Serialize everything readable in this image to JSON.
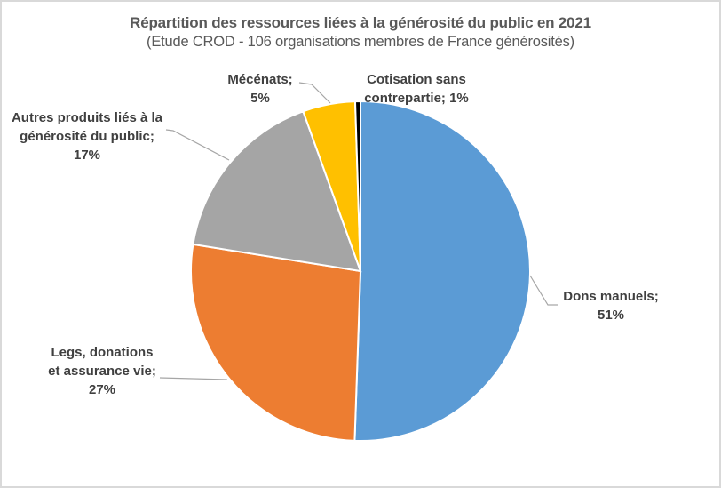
{
  "chart_data": {
    "type": "pie",
    "title": "Répartition des ressources liées à la générosité du public en 2021",
    "subtitle": "(Etude CROD - 106 organisations membres de France générosités)",
    "categories": [
      "Dons manuels",
      "Legs, donations et assurance vie",
      "Autres produits liés à la générosité du public",
      "Mécénats",
      "Cotisation sans contrepartie"
    ],
    "values": [
      51,
      27,
      17,
      5,
      1
    ],
    "units": "%",
    "colors": [
      "#5b9bd5",
      "#ed7d31",
      "#a5a5a5",
      "#ffc000",
      "#000000"
    ],
    "labels": [
      {
        "line1": "Dons manuels;",
        "line2": "51%"
      },
      {
        "line1": "Legs, donations",
        "line2": "et assurance vie;",
        "line3": "27%"
      },
      {
        "line1": "Autres produits liés à la",
        "line2": "générosité du public;",
        "line3": "17%"
      },
      {
        "line1": "Mécénats;",
        "line2": "5%"
      },
      {
        "line1": "Cotisation sans",
        "line2": "contrepartie; 1%"
      }
    ],
    "legend": "none (data labels with leader lines)"
  }
}
